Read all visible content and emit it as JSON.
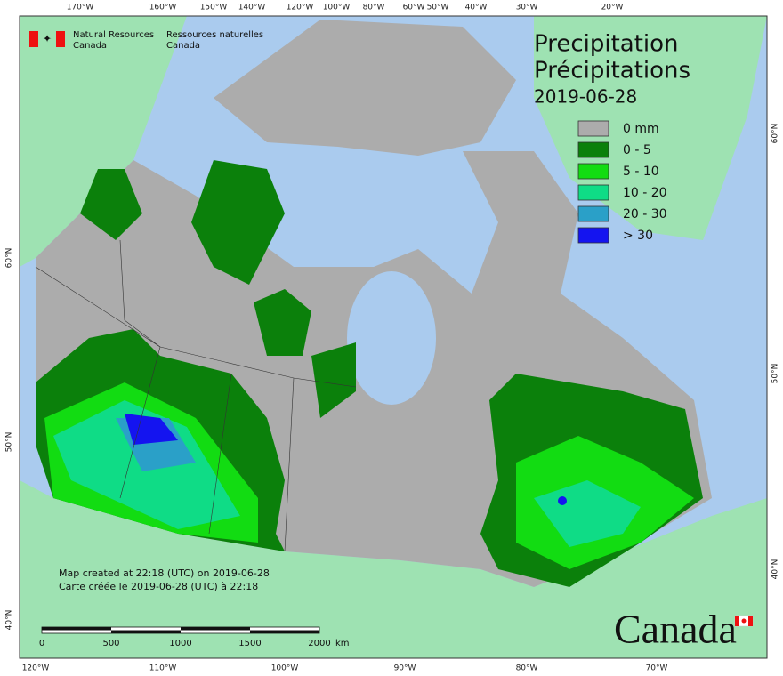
{
  "header": {
    "agency_en": [
      "Natural Resources",
      "Canada"
    ],
    "agency_fr": [
      "Ressources naturelles",
      "Canada"
    ],
    "title_en": "Precipitation",
    "title_fr": "Précipitations",
    "date": "2019-06-28"
  },
  "legend": [
    {
      "label": "0 mm",
      "color": "#acacac"
    },
    {
      "label": "0 - 5",
      "color": "#0b800b"
    },
    {
      "label": "5 - 10",
      "color": "#12dc12"
    },
    {
      "label": "10 - 20",
      "color": "#0fdc86"
    },
    {
      "label": "20 - 30",
      "color": "#2aa0c8"
    },
    {
      "label": "> 30",
      "color": "#1414f0"
    }
  ],
  "graticule": {
    "top": [
      "170°W",
      "160°W",
      "150°W",
      "140°W",
      "120°W",
      "100°W",
      "80°W",
      "60°W",
      "50°W",
      "40°W",
      "30°W",
      "20°W"
    ],
    "bottom": [
      "120°W",
      "110°W",
      "100°W",
      "90°W",
      "80°W",
      "70°W"
    ],
    "left": [
      "60°N",
      "50°N",
      "40°N"
    ],
    "right": [
      "60°N",
      "50°N",
      "40°N"
    ]
  },
  "credits": [
    "Map created at 22:18 (UTC) on 2019-06-28",
    "Carte créée le 2019-06-28 (UTC) à 22:18"
  ],
  "scale_bar": {
    "labels": [
      "0",
      "500",
      "1000",
      "1500",
      "2000"
    ],
    "unit": "km"
  },
  "wordmark": "Canada"
}
